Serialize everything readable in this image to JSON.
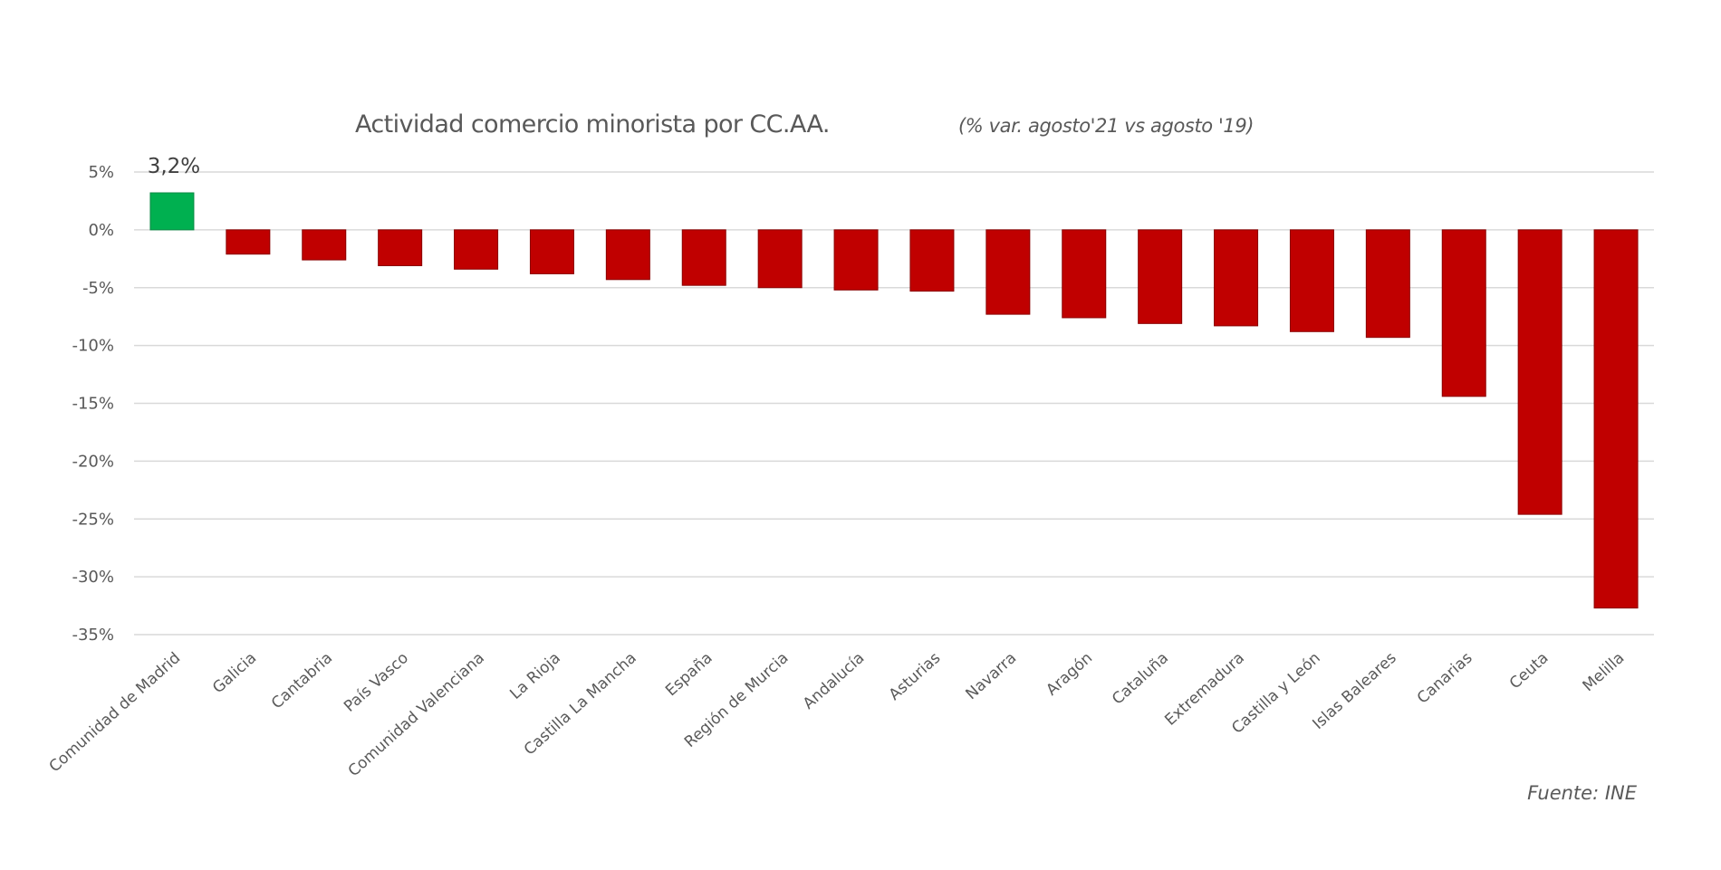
{
  "chart_data": {
    "type": "bar",
    "title": "Actividad comercio minorista por CC.AA.",
    "subtitle": "(% var. agosto'21 vs agosto '19)",
    "xlabel": "",
    "ylabel": "",
    "ylim": [
      -35,
      5
    ],
    "y_ticks": [
      5,
      0,
      -5,
      -10,
      -15,
      -20,
      -25,
      -30,
      -35
    ],
    "y_tick_labels": [
      "5%",
      "0%",
      "-5%",
      "-10%",
      "-15%",
      "-20%",
      "-25%",
      "-30%",
      "-35%"
    ],
    "grid": true,
    "legend": "none",
    "categories": [
      "Comunidad de Madrid",
      "Galicia",
      "Cantabria",
      "País Vasco",
      "Comunidad Valenciana",
      "La Rioja",
      "Castilla La Mancha",
      "España",
      "Región de Murcia",
      "Andalucía",
      "Asturias",
      "Navarra",
      "Aragón",
      "Cataluña",
      "Extremadura",
      "Castilla y León",
      "Islas Baleares",
      "Canarias",
      "Ceuta",
      "Melilla"
    ],
    "values": [
      3.2,
      -2.1,
      -2.6,
      -3.1,
      -3.4,
      -3.8,
      -4.3,
      -4.8,
      -5.0,
      -5.2,
      -5.3,
      -7.3,
      -7.6,
      -8.1,
      -8.3,
      -8.8,
      -9.3,
      -14.4,
      -24.6,
      -32.7
    ],
    "annotations": [
      {
        "category": "Comunidad de Madrid",
        "text": "3,2%"
      }
    ],
    "source": "Fuente: INE",
    "colors": {
      "positive": "#00b050",
      "negative": "#c00000",
      "gridline": "#d9d9d9",
      "text": "#595959"
    }
  }
}
